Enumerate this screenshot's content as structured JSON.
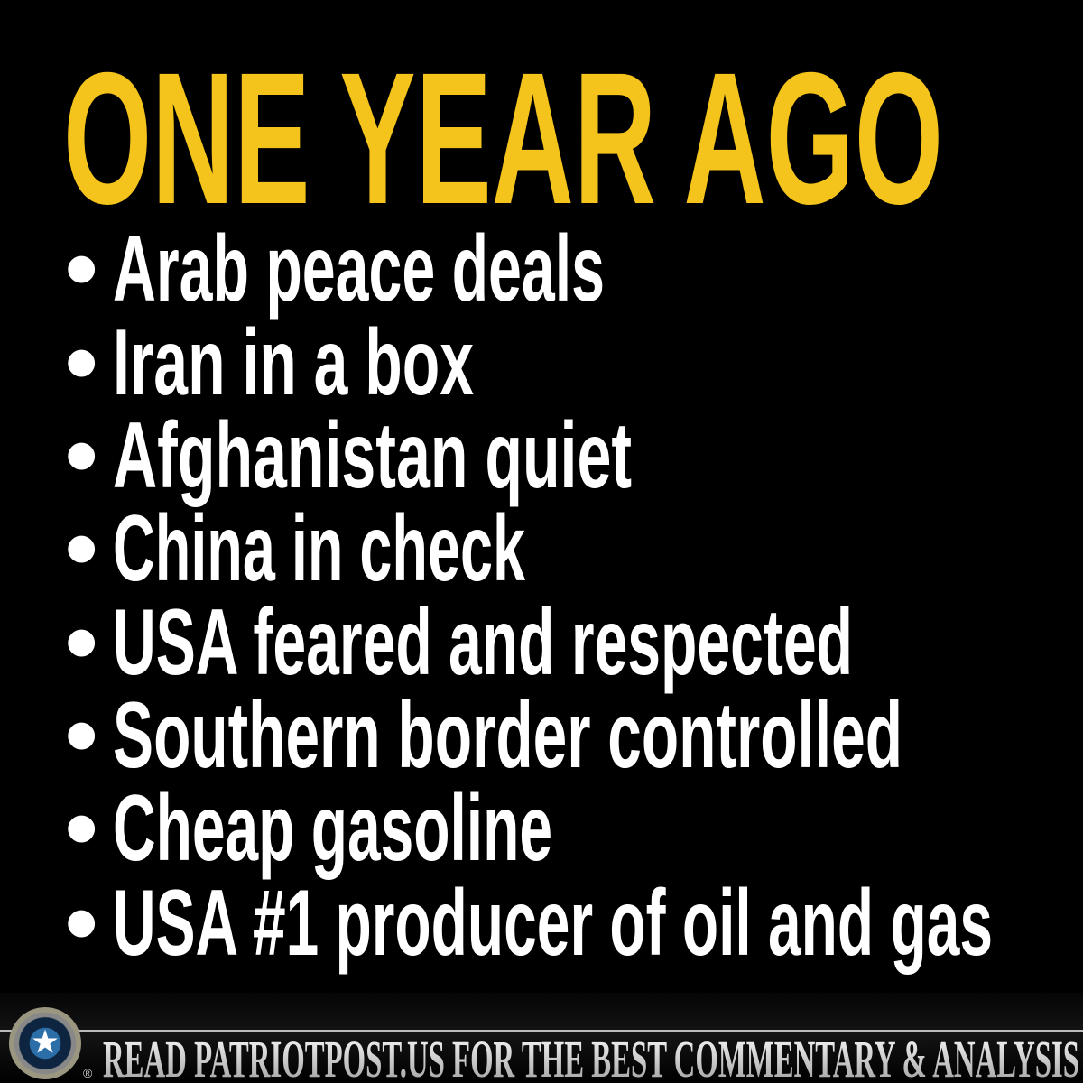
{
  "title": "ONE YEAR AGO",
  "bullet": "•",
  "items": [
    "Arab peace deals",
    "Iran in a box",
    "Afghanistan quiet",
    "China in check",
    "USA feared and respected",
    "Southern border controlled",
    "Cheap gasoline",
    "USA #1 producer of oil and gas"
  ],
  "footer": {
    "tagline": "READ PATRIOTPOST.US FOR THE BEST COMMENTARY & ANALYSIS",
    "registered": "®",
    "logo_icon": "star-seal-icon"
  },
  "colors": {
    "title": "#f4c41c",
    "text": "#ffffff",
    "background": "#000000"
  }
}
